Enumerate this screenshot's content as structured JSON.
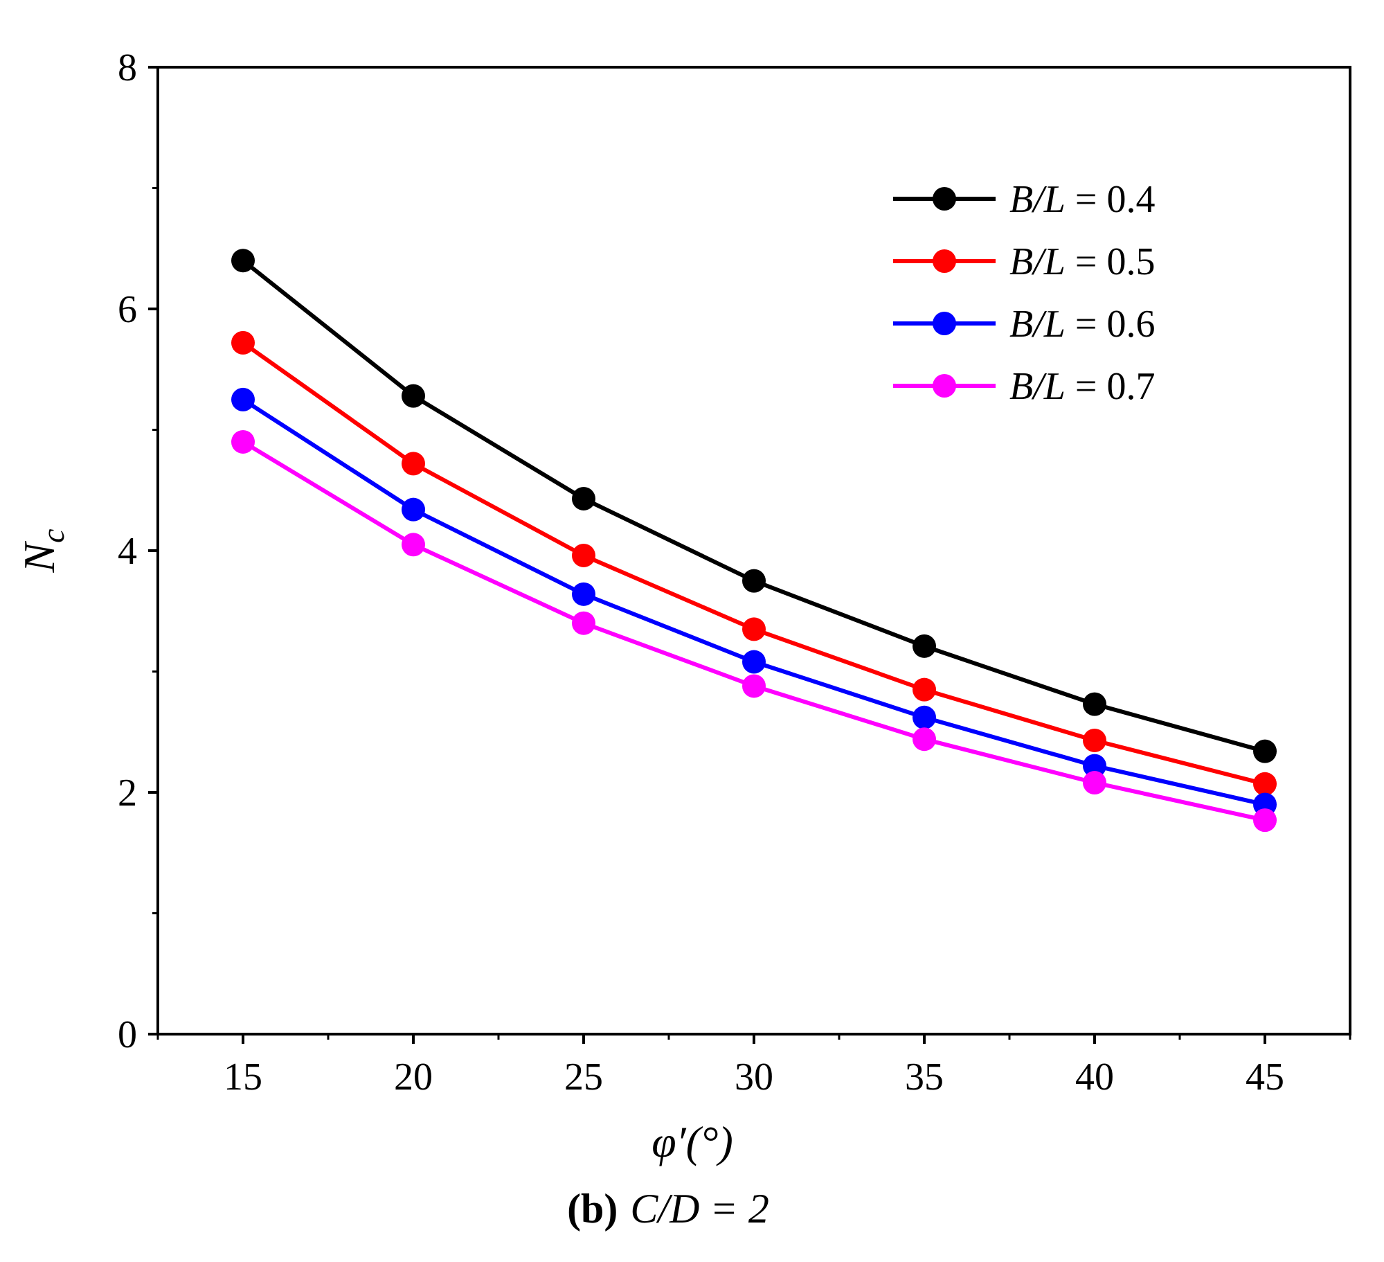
{
  "chart_data": {
    "type": "line",
    "title": "",
    "caption": {
      "panel": "(b)",
      "text": "C/D = 2"
    },
    "xlabel": "φ′(°)",
    "ylabel": "N",
    "ylabel_subscript": "c",
    "xlim": [
      12.5,
      47.5
    ],
    "ylim": [
      0,
      8
    ],
    "x": [
      15,
      20,
      25,
      30,
      35,
      40,
      45
    ],
    "xticks": [
      "15",
      "20",
      "25",
      "30",
      "35",
      "40",
      "45"
    ],
    "yticks": [
      "0",
      "2",
      "4",
      "6",
      "8"
    ],
    "legend_position": "top-right",
    "series": [
      {
        "name": "B/L = 0.4",
        "color": "#000000",
        "values": [
          6.4,
          5.28,
          4.43,
          3.75,
          3.21,
          2.73,
          2.34
        ]
      },
      {
        "name": "B/L = 0.5",
        "color": "#ff0000",
        "values": [
          5.72,
          4.72,
          3.96,
          3.35,
          2.85,
          2.43,
          2.07
        ]
      },
      {
        "name": "B/L = 0.6",
        "color": "#0000ff",
        "values": [
          5.25,
          4.34,
          3.64,
          3.08,
          2.62,
          2.22,
          1.9
        ]
      },
      {
        "name": "B/L = 0.7",
        "color": "#ff00ff",
        "values": [
          4.9,
          4.05,
          3.4,
          2.88,
          2.44,
          2.08,
          1.77
        ]
      }
    ]
  }
}
